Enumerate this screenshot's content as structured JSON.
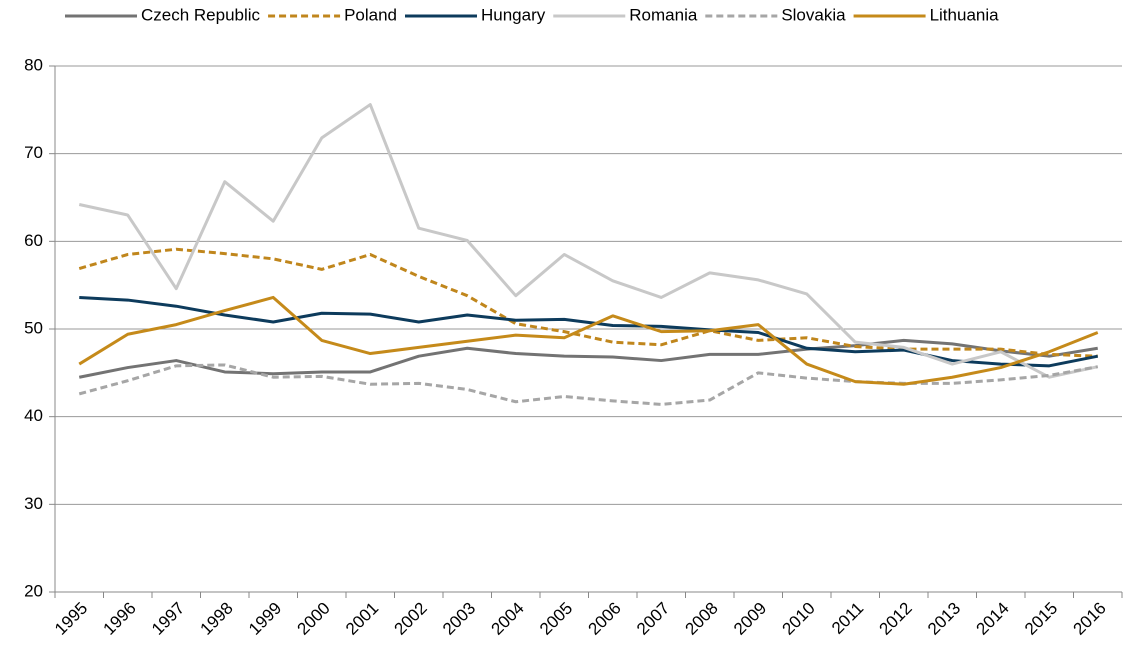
{
  "chart_data": {
    "type": "line",
    "categories": [
      "1995",
      "1996",
      "1997",
      "1998",
      "1999",
      "2000",
      "2001",
      "2002",
      "2003",
      "2004",
      "2005",
      "2006",
      "2007",
      "2008",
      "2009",
      "2010",
      "2011",
      "2012",
      "2013",
      "2014",
      "2015",
      "2016"
    ],
    "series": [
      {
        "name": "Czech Republic",
        "color": "#737373",
        "dashed": false,
        "values": [
          44.5,
          45.6,
          46.4,
          45.1,
          44.9,
          45.1,
          45.1,
          46.9,
          47.8,
          47.2,
          46.9,
          46.8,
          46.4,
          47.1,
          47.1,
          47.7,
          48.1,
          48.7,
          48.3,
          47.5,
          46.9,
          47.8
        ]
      },
      {
        "name": "Poland",
        "color": "#c0861c",
        "dashed": true,
        "values": [
          56.9,
          58.5,
          59.1,
          58.6,
          58.0,
          56.8,
          58.5,
          56.0,
          53.8,
          50.6,
          49.7,
          48.5,
          48.2,
          49.8,
          48.7,
          49.0,
          48.0,
          47.7,
          47.7,
          47.7,
          47.1,
          46.9
        ]
      },
      {
        "name": "Hungary",
        "color": "#0d3b5c",
        "dashed": false,
        "values": [
          53.6,
          53.3,
          52.6,
          51.6,
          50.8,
          51.8,
          51.7,
          50.8,
          51.6,
          51.0,
          51.1,
          50.4,
          50.3,
          49.9,
          49.6,
          47.8,
          47.4,
          47.6,
          46.4,
          46.0,
          45.8,
          46.9
        ]
      },
      {
        "name": "Romania",
        "color": "#c8c8c8",
        "dashed": false,
        "values": [
          64.2,
          63.0,
          54.6,
          66.8,
          62.3,
          71.8,
          75.6,
          61.5,
          60.1,
          53.8,
          58.5,
          55.5,
          53.6,
          56.4,
          55.6,
          54.0,
          48.5,
          47.9,
          46.0,
          47.4,
          44.5,
          45.7
        ]
      },
      {
        "name": "Slovakia",
        "color": "#a6a6a6",
        "dashed": true,
        "values": [
          42.6,
          44.1,
          45.8,
          45.9,
          44.5,
          44.6,
          43.7,
          43.8,
          43.1,
          41.7,
          42.3,
          41.8,
          41.4,
          41.9,
          45.0,
          44.4,
          44.0,
          43.8,
          43.8,
          44.2,
          44.7,
          45.7
        ]
      },
      {
        "name": "Lithuania",
        "color": "#c58a1a",
        "dashed": false,
        "values": [
          46.0,
          49.4,
          50.5,
          52.1,
          53.6,
          48.7,
          47.2,
          47.9,
          48.6,
          49.3,
          49.0,
          51.5,
          49.7,
          49.8,
          50.5,
          46.0,
          44.0,
          43.7,
          44.5,
          45.6,
          47.4,
          49.6
        ]
      }
    ],
    "ylim": [
      20,
      80
    ],
    "yticks": [
      20,
      30,
      40,
      50,
      60,
      70,
      80
    ],
    "grid": true,
    "legend": "top"
  }
}
